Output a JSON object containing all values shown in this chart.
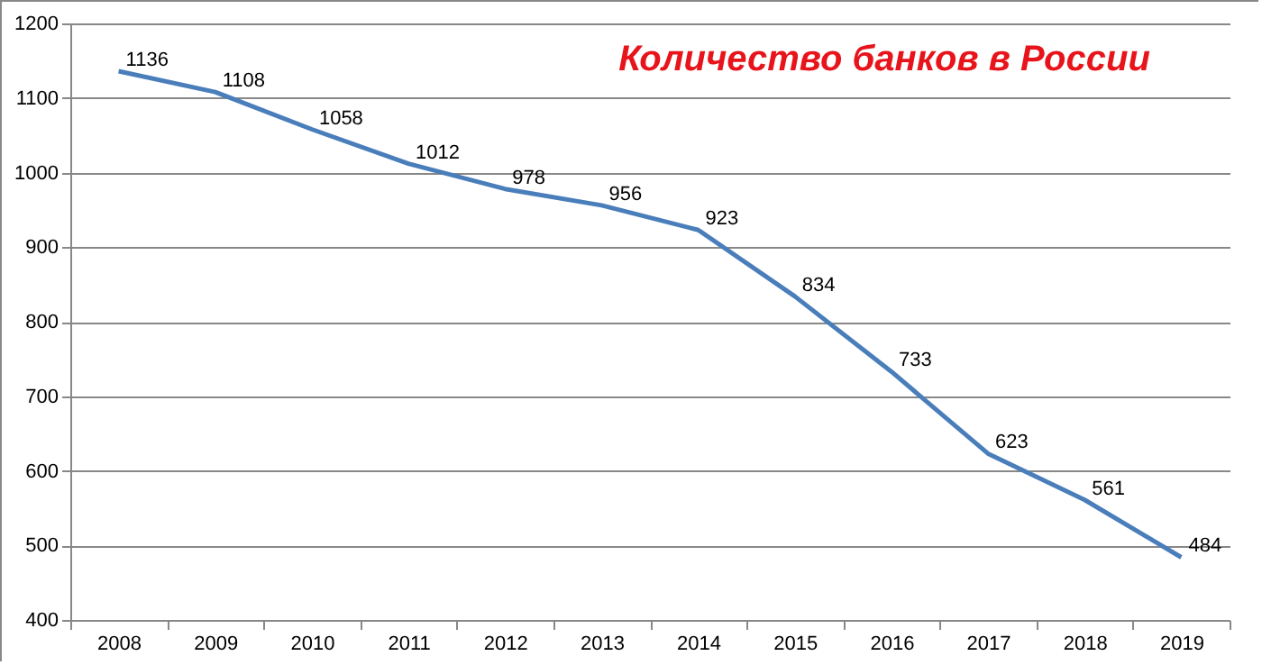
{
  "chart_data": {
    "type": "line",
    "title": "Количество банков в России",
    "categories": [
      "2008",
      "2009",
      "2010",
      "2011",
      "2012",
      "2013",
      "2014",
      "2015",
      "2016",
      "2017",
      "2018",
      "2019"
    ],
    "series": [
      {
        "color": "#4a7ebb",
        "values": [
          1136,
          1108,
          1058,
          1012,
          978,
          956,
          923,
          834,
          733,
          623,
          561,
          484
        ]
      }
    ],
    "ylim": [
      400,
      1200
    ],
    "yticks": [
      400,
      500,
      600,
      700,
      800,
      900,
      1000,
      1100,
      1200
    ],
    "grid": "y",
    "data_labels": true,
    "marker": "none",
    "line_style": "solid",
    "legend": false
  }
}
